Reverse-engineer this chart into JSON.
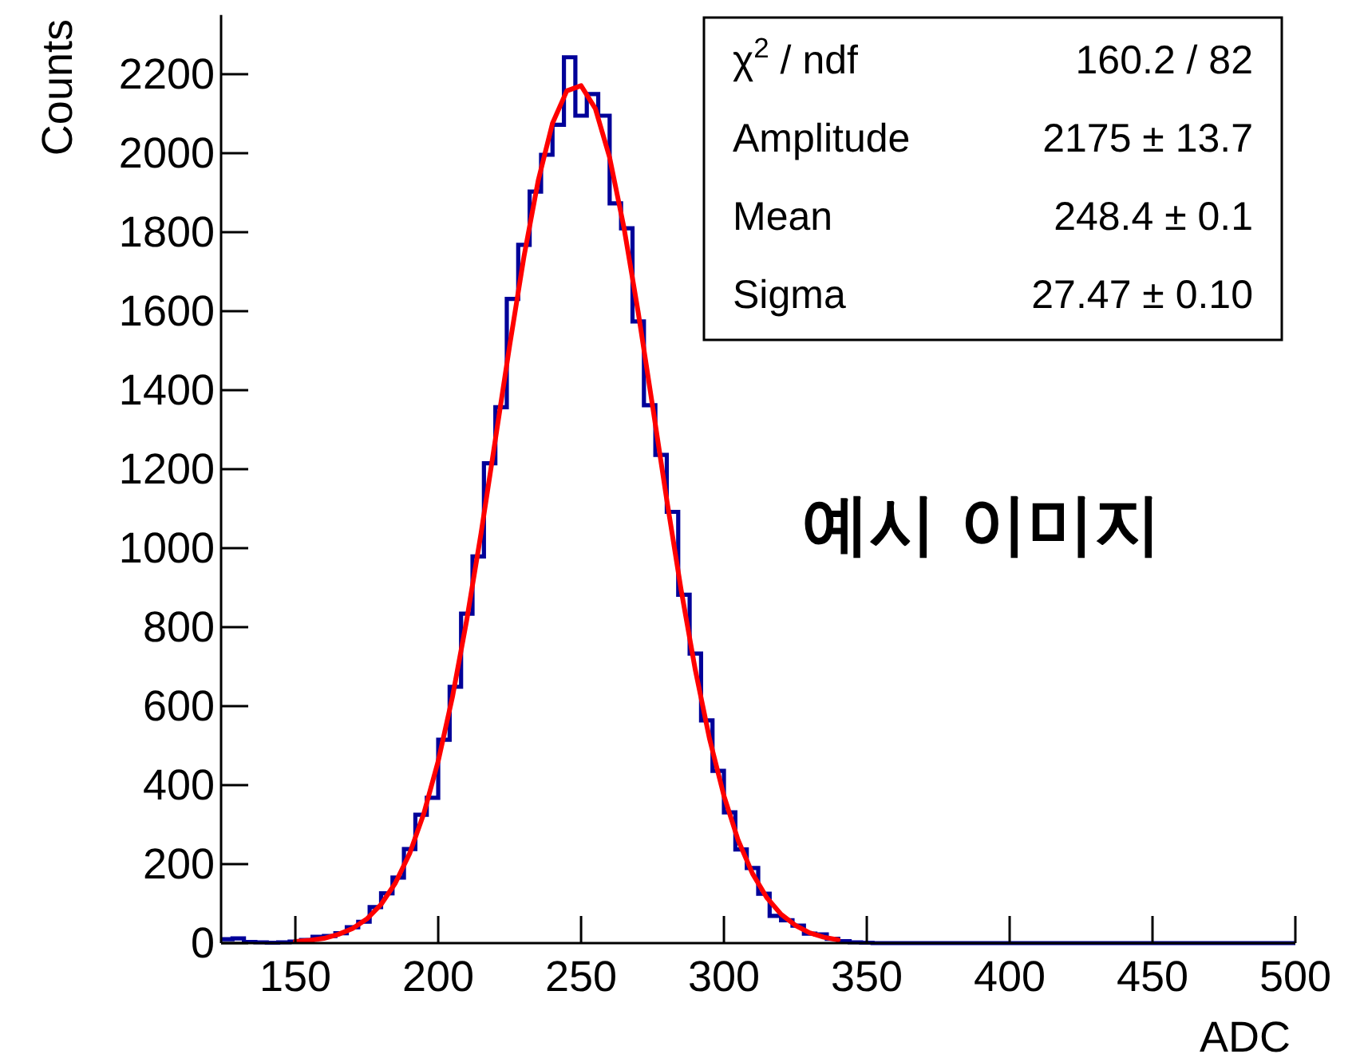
{
  "chart_data": {
    "type": "histogram",
    "xlabel": "ADC",
    "ylabel": "Counts",
    "xlim": [
      124,
      500
    ],
    "ylim": [
      0,
      2350
    ],
    "legend": false,
    "grid": false,
    "xticks": [
      150,
      200,
      250,
      300,
      350,
      400,
      450,
      500
    ],
    "yticks": [
      0,
      200,
      400,
      600,
      800,
      1000,
      1200,
      1400,
      1600,
      1800,
      2000,
      2200
    ],
    "annotations": [
      "χ$^{2}$ / ndf",
      "160.2 / 82",
      "Amplitude",
      "2175 ± 13.7",
      "Mean",
      "248.4 ± 0.1",
      "Sigma",
      "27.47 ± 0.10",
      "예시 이미지"
    ],
    "series": [
      {
        "type": "histogram",
        "color": "#000099",
        "bins": [
          124,
          128,
          132,
          136,
          140,
          144,
          148,
          152,
          156,
          160,
          164,
          168,
          172,
          176,
          180,
          184,
          188,
          192,
          196,
          200,
          204,
          208,
          212,
          216,
          220,
          224,
          228,
          232,
          236,
          240,
          244,
          248,
          252,
          256,
          260,
          264,
          268,
          272,
          276,
          280,
          284,
          288,
          292,
          296,
          300,
          304,
          308,
          312,
          316,
          320,
          324,
          328,
          332,
          336,
          340,
          344,
          348,
          352,
          356,
          360,
          364,
          368,
          372,
          376,
          380,
          384,
          388,
          392,
          396,
          400,
          404,
          408,
          412,
          416,
          420,
          424,
          428,
          432,
          436,
          440,
          444,
          448,
          452,
          456,
          460,
          464,
          468,
          472,
          476,
          480,
          484,
          488,
          492,
          496,
          500
        ],
        "values": [
          10,
          12,
          3,
          2,
          1,
          2,
          4,
          8,
          16,
          18,
          25,
          40,
          54,
          91,
          126,
          166,
          238,
          325,
          368,
          515,
          649,
          834,
          979,
          1215,
          1357,
          1631,
          1768,
          1903,
          1996,
          2072,
          2243,
          2095,
          2150,
          2095,
          1873,
          1810,
          1574,
          1362,
          1236,
          1092,
          882,
          733,
          564,
          436,
          331,
          237,
          190,
          125,
          69,
          58,
          44,
          24,
          22,
          11,
          5,
          2,
          1,
          0,
          0,
          0,
          0,
          0,
          0,
          0,
          0,
          0,
          0,
          0,
          0,
          0,
          0,
          0,
          0,
          0,
          0,
          0,
          0,
          0,
          0,
          0,
          0,
          0,
          0,
          0,
          0,
          0,
          0,
          0,
          0,
          0,
          0,
          0,
          0,
          0
        ]
      },
      {
        "type": "line",
        "color": "#ff0000",
        "x": [
          150,
          155,
          160,
          165,
          170,
          175,
          180,
          185,
          190,
          195,
          200,
          205,
          210,
          215,
          220,
          225,
          230,
          235,
          240,
          245,
          250,
          255,
          260,
          265,
          270,
          275,
          280,
          285,
          290,
          295,
          300,
          305,
          310,
          315,
          320,
          325,
          330,
          335,
          340
        ],
        "values": [
          4,
          7,
          12,
          22,
          37,
          61,
          98,
          152,
          227,
          329,
          461,
          624,
          819,
          1038,
          1275,
          1513,
          1738,
          1931,
          2076,
          2158,
          2171,
          2113,
          1989,
          1812,
          1597,
          1361,
          1122,
          895,
          691,
          516,
          373,
          260,
          176,
          115,
          73,
          45,
          26,
          15,
          8
        ]
      }
    ]
  }
}
